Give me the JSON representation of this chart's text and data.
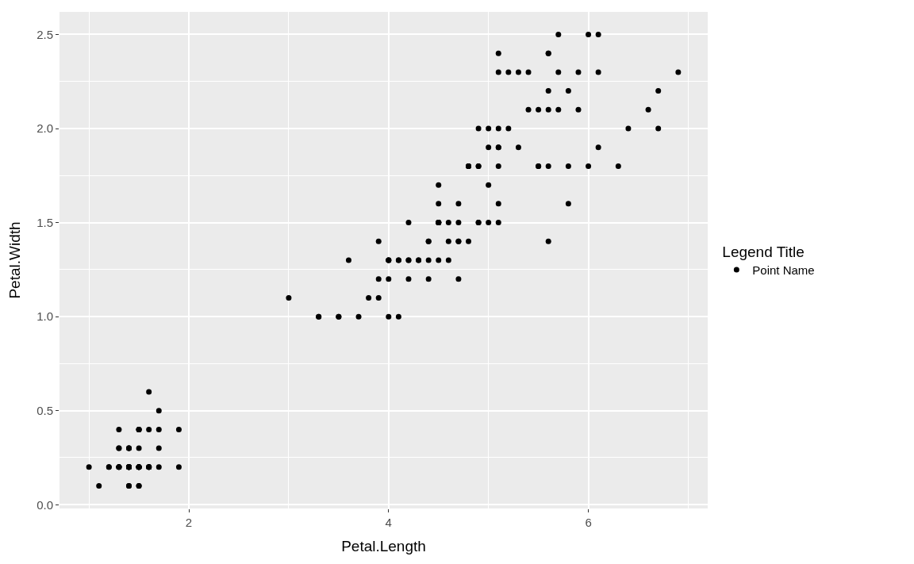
{
  "chart_data": {
    "type": "scatter",
    "xlabel": "Petal.Length",
    "ylabel": "Petal.Width",
    "legend_title": "Legend Title",
    "x": [
      1.4,
      1.4,
      1.3,
      1.5,
      1.4,
      1.7,
      1.4,
      1.5,
      1.4,
      1.5,
      1.5,
      1.6,
      1.4,
      1.1,
      1.2,
      1.5,
      1.3,
      1.4,
      1.7,
      1.5,
      1.7,
      1.5,
      1.0,
      1.7,
      1.9,
      1.6,
      1.6,
      1.5,
      1.4,
      1.6,
      1.6,
      1.5,
      1.5,
      1.4,
      1.5,
      1.2,
      1.3,
      1.4,
      1.3,
      1.5,
      1.3,
      1.3,
      1.3,
      1.6,
      1.9,
      1.4,
      1.6,
      1.4,
      1.5,
      1.4,
      4.7,
      4.5,
      4.9,
      4.0,
      4.6,
      4.5,
      4.7,
      3.3,
      4.6,
      3.9,
      3.5,
      4.2,
      4.0,
      4.7,
      3.6,
      4.4,
      4.5,
      4.1,
      4.5,
      3.9,
      4.8,
      4.0,
      4.9,
      4.7,
      4.3,
      4.4,
      4.8,
      5.0,
      4.5,
      3.5,
      3.8,
      3.7,
      3.9,
      5.1,
      4.5,
      4.5,
      4.7,
      4.4,
      4.1,
      4.0,
      4.4,
      4.6,
      4.0,
      3.3,
      4.2,
      4.2,
      4.2,
      4.3,
      3.0,
      4.1,
      6.0,
      5.1,
      5.9,
      5.6,
      5.8,
      6.6,
      4.5,
      6.3,
      5.8,
      6.1,
      5.1,
      5.3,
      5.5,
      5.0,
      5.1,
      5.3,
      5.5,
      6.7,
      6.9,
      5.0,
      5.7,
      4.9,
      6.7,
      4.9,
      5.7,
      6.0,
      4.8,
      4.9,
      5.6,
      5.8,
      6.1,
      6.4,
      5.6,
      5.1,
      5.6,
      6.1,
      5.6,
      5.5,
      4.8,
      5.4,
      5.6,
      5.1,
      5.1,
      5.9,
      5.7,
      5.2,
      5.0,
      5.2,
      5.4,
      5.1
    ],
    "series": [
      {
        "name": "Point Name",
        "color": "#000000",
        "values": [
          0.2,
          0.2,
          0.2,
          0.2,
          0.2,
          0.4,
          0.3,
          0.2,
          0.2,
          0.1,
          0.2,
          0.2,
          0.1,
          0.1,
          0.2,
          0.4,
          0.4,
          0.3,
          0.3,
          0.3,
          0.2,
          0.4,
          0.2,
          0.5,
          0.2,
          0.2,
          0.4,
          0.2,
          0.2,
          0.2,
          0.2,
          0.4,
          0.1,
          0.2,
          0.2,
          0.2,
          0.2,
          0.1,
          0.2,
          0.2,
          0.3,
          0.3,
          0.2,
          0.6,
          0.4,
          0.3,
          0.2,
          0.2,
          0.2,
          0.2,
          1.4,
          1.5,
          1.5,
          1.3,
          1.5,
          1.3,
          1.6,
          1.0,
          1.3,
          1.4,
          1.0,
          1.5,
          1.0,
          1.4,
          1.3,
          1.4,
          1.5,
          1.0,
          1.5,
          1.1,
          1.8,
          1.3,
          1.5,
          1.2,
          1.3,
          1.4,
          1.4,
          1.7,
          1.5,
          1.0,
          1.1,
          1.0,
          1.2,
          1.6,
          1.5,
          1.6,
          1.5,
          1.3,
          1.3,
          1.3,
          1.2,
          1.4,
          1.2,
          1.0,
          1.3,
          1.2,
          1.3,
          1.3,
          1.1,
          1.3,
          2.5,
          1.9,
          2.1,
          1.8,
          2.2,
          2.1,
          1.7,
          1.8,
          1.8,
          2.5,
          2.0,
          1.9,
          2.1,
          2.0,
          2.4,
          2.3,
          1.8,
          2.2,
          2.3,
          1.5,
          2.3,
          2.0,
          2.0,
          1.8,
          2.1,
          1.8,
          1.8,
          1.8,
          2.1,
          1.6,
          1.9,
          2.0,
          2.2,
          1.5,
          1.4,
          2.3,
          2.4,
          1.8,
          1.8,
          2.1,
          2.4,
          2.3,
          1.9,
          2.3,
          2.5,
          2.3,
          1.9,
          2.0,
          2.3,
          1.8
        ]
      }
    ],
    "xlim": [
      0.705,
      7.195
    ],
    "ylim": [
      -0.02,
      2.62
    ],
    "xticks": [
      {
        "value": 1,
        "label": null
      },
      2,
      {
        "value": 3,
        "label": null
      },
      4,
      {
        "value": 5,
        "label": null
      },
      6,
      {
        "value": 7,
        "label": null
      }
    ],
    "yticks": [
      {
        "value": 0,
        "label": "0.0"
      },
      {
        "value": 0.25,
        "label": null
      },
      {
        "value": 0.5,
        "label": "0.5"
      },
      {
        "value": 0.75,
        "label": null
      },
      {
        "value": 1,
        "label": "1.0"
      },
      {
        "value": 1.25,
        "label": null
      },
      {
        "value": 1.5,
        "label": "1.5"
      },
      {
        "value": 1.75,
        "label": null
      },
      {
        "value": 2,
        "label": "2.0"
      },
      {
        "value": 2.25,
        "label": null
      },
      {
        "value": 2.5,
        "label": "2.5"
      }
    ],
    "grid": true,
    "legend": "right",
    "marker": "circle"
  }
}
